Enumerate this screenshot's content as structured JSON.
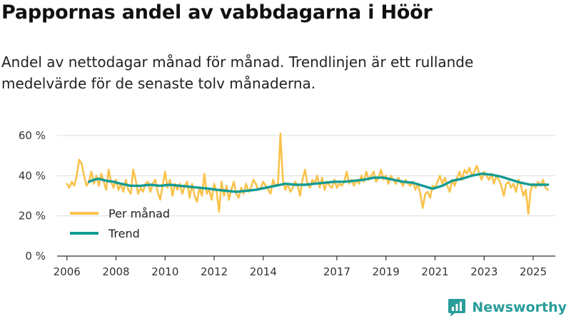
{
  "title": "Pappornas andel av vabbdagarna i Höör",
  "subtitle": "Andel av nettodagar månad för månad. Trendlinjen är ett rullande medelvärde för de senaste tolv månaderna.",
  "brand": {
    "name": "Newsworthy",
    "icon": "newsworthy-logo-icon"
  },
  "colors": {
    "monthly": "#f9c24b",
    "trend": "#139b93",
    "grid": "#dddddd",
    "axis": "#333333"
  },
  "chart_data": {
    "type": "line",
    "title": "Pappornas andel av vabbdagarna i Höör",
    "xlabel": "",
    "ylabel": "",
    "xlim": [
      2005.6,
      2025.9
    ],
    "ylim": [
      0,
      60
    ],
    "y_ticks": [
      0,
      20,
      40,
      60
    ],
    "y_tick_labels": [
      "0 %",
      "20 %",
      "40 %",
      "60 %"
    ],
    "x_ticks": [
      2006,
      2008,
      2010,
      2012,
      2014,
      2017,
      2019,
      2021,
      2023,
      2025
    ],
    "x_tick_labels": [
      "2006",
      "2008",
      "2010",
      "2012",
      "2014",
      "2017",
      "2019",
      "2021",
      "2023",
      "2025"
    ],
    "grid": true,
    "legend_position": "bottom-left",
    "series": [
      {
        "name": "Per månad",
        "color": "#f9c24b",
        "points": [
          [
            2006.0,
            36
          ],
          [
            2006.1,
            34
          ],
          [
            2006.2,
            37
          ],
          [
            2006.3,
            35
          ],
          [
            2006.4,
            40
          ],
          [
            2006.5,
            48
          ],
          [
            2006.6,
            46
          ],
          [
            2006.7,
            40
          ],
          [
            2006.8,
            35
          ],
          [
            2006.9,
            37
          ],
          [
            2007.0,
            42
          ],
          [
            2007.1,
            36
          ],
          [
            2007.2,
            40
          ],
          [
            2007.3,
            35
          ],
          [
            2007.4,
            41
          ],
          [
            2007.5,
            37
          ],
          [
            2007.6,
            33
          ],
          [
            2007.7,
            43
          ],
          [
            2007.8,
            37
          ],
          [
            2007.9,
            34
          ],
          [
            2008.0,
            38
          ],
          [
            2008.1,
            33
          ],
          [
            2008.2,
            36
          ],
          [
            2008.3,
            32
          ],
          [
            2008.4,
            38
          ],
          [
            2008.5,
            33
          ],
          [
            2008.6,
            31
          ],
          [
            2008.7,
            43
          ],
          [
            2008.8,
            38
          ],
          [
            2008.9,
            31
          ],
          [
            2009.0,
            34
          ],
          [
            2009.1,
            32
          ],
          [
            2009.2,
            36
          ],
          [
            2009.3,
            37
          ],
          [
            2009.4,
            32
          ],
          [
            2009.5,
            36
          ],
          [
            2009.6,
            38
          ],
          [
            2009.7,
            32
          ],
          [
            2009.8,
            28
          ],
          [
            2009.9,
            35
          ],
          [
            2010.0,
            42
          ],
          [
            2010.1,
            34
          ],
          [
            2010.2,
            38
          ],
          [
            2010.3,
            30
          ],
          [
            2010.4,
            36
          ],
          [
            2010.5,
            33
          ],
          [
            2010.6,
            36
          ],
          [
            2010.7,
            31
          ],
          [
            2010.8,
            35
          ],
          [
            2010.9,
            37
          ],
          [
            2011.0,
            29
          ],
          [
            2011.1,
            36
          ],
          [
            2011.2,
            30
          ],
          [
            2011.3,
            27
          ],
          [
            2011.4,
            34
          ],
          [
            2011.5,
            30
          ],
          [
            2011.6,
            41
          ],
          [
            2011.7,
            31
          ],
          [
            2011.8,
            33
          ],
          [
            2011.9,
            28
          ],
          [
            2012.0,
            36
          ],
          [
            2012.1,
            32
          ],
          [
            2012.2,
            22
          ],
          [
            2012.3,
            37
          ],
          [
            2012.4,
            30
          ],
          [
            2012.5,
            35
          ],
          [
            2012.6,
            28
          ],
          [
            2012.7,
            33
          ],
          [
            2012.8,
            37
          ],
          [
            2012.9,
            31
          ],
          [
            2013.0,
            29
          ],
          [
            2013.1,
            34
          ],
          [
            2013.2,
            31
          ],
          [
            2013.3,
            36
          ],
          [
            2013.4,
            32
          ],
          [
            2013.5,
            34
          ],
          [
            2013.6,
            38
          ],
          [
            2013.7,
            36
          ],
          [
            2013.8,
            33
          ],
          [
            2013.9,
            34
          ],
          [
            2014.0,
            37
          ],
          [
            2014.1,
            35
          ],
          [
            2014.2,
            33
          ],
          [
            2014.3,
            31
          ],
          [
            2014.4,
            38
          ],
          [
            2014.5,
            35
          ],
          [
            2014.6,
            36
          ],
          [
            2014.7,
            61
          ],
          [
            2014.8,
            38
          ],
          [
            2014.9,
            33
          ],
          [
            2015.0,
            36
          ],
          [
            2015.1,
            32
          ],
          [
            2015.2,
            34
          ],
          [
            2015.3,
            37
          ],
          [
            2015.4,
            35
          ],
          [
            2015.5,
            30
          ],
          [
            2015.6,
            38
          ],
          [
            2015.7,
            43
          ],
          [
            2015.8,
            36
          ],
          [
            2015.9,
            34
          ],
          [
            2016.0,
            38
          ],
          [
            2016.1,
            36
          ],
          [
            2016.2,
            40
          ],
          [
            2016.3,
            34
          ],
          [
            2016.4,
            39
          ],
          [
            2016.5,
            33
          ],
          [
            2016.6,
            37
          ],
          [
            2016.7,
            35
          ],
          [
            2016.8,
            34
          ],
          [
            2016.9,
            38
          ],
          [
            2017.0,
            34
          ],
          [
            2017.1,
            36
          ],
          [
            2017.2,
            35
          ],
          [
            2017.3,
            37
          ],
          [
            2017.4,
            42
          ],
          [
            2017.5,
            36
          ],
          [
            2017.6,
            38
          ],
          [
            2017.7,
            35
          ],
          [
            2017.8,
            38
          ],
          [
            2017.9,
            36
          ],
          [
            2018.0,
            40
          ],
          [
            2018.1,
            37
          ],
          [
            2018.2,
            42
          ],
          [
            2018.3,
            38
          ],
          [
            2018.4,
            40
          ],
          [
            2018.5,
            42
          ],
          [
            2018.6,
            37
          ],
          [
            2018.7,
            39
          ],
          [
            2018.8,
            43
          ],
          [
            2018.9,
            38
          ],
          [
            2019.0,
            40
          ],
          [
            2019.1,
            36
          ],
          [
            2019.2,
            40
          ],
          [
            2019.3,
            38
          ],
          [
            2019.4,
            36
          ],
          [
            2019.5,
            39
          ],
          [
            2019.6,
            37
          ],
          [
            2019.7,
            35
          ],
          [
            2019.8,
            38
          ],
          [
            2019.9,
            36
          ],
          [
            2020.0,
            35
          ],
          [
            2020.1,
            37
          ],
          [
            2020.2,
            33
          ],
          [
            2020.3,
            36
          ],
          [
            2020.4,
            31
          ],
          [
            2020.5,
            24
          ],
          [
            2020.6,
            31
          ],
          [
            2020.7,
            32
          ],
          [
            2020.8,
            29
          ],
          [
            2020.9,
            35
          ],
          [
            2021.0,
            34
          ],
          [
            2021.1,
            37
          ],
          [
            2021.2,
            40
          ],
          [
            2021.3,
            36
          ],
          [
            2021.4,
            39
          ],
          [
            2021.5,
            35
          ],
          [
            2021.6,
            32
          ],
          [
            2021.7,
            38
          ],
          [
            2021.8,
            35
          ],
          [
            2021.9,
            39
          ],
          [
            2022.0,
            42
          ],
          [
            2022.1,
            38
          ],
          [
            2022.2,
            43
          ],
          [
            2022.3,
            41
          ],
          [
            2022.4,
            44
          ],
          [
            2022.5,
            40
          ],
          [
            2022.6,
            42
          ],
          [
            2022.7,
            45
          ],
          [
            2022.8,
            41
          ],
          [
            2022.9,
            38
          ],
          [
            2023.0,
            42
          ],
          [
            2023.1,
            40
          ],
          [
            2023.2,
            38
          ],
          [
            2023.3,
            41
          ],
          [
            2023.4,
            36
          ],
          [
            2023.5,
            40
          ],
          [
            2023.6,
            38
          ],
          [
            2023.7,
            35
          ],
          [
            2023.8,
            30
          ],
          [
            2023.9,
            36
          ],
          [
            2024.0,
            37
          ],
          [
            2024.1,
            34
          ],
          [
            2024.2,
            36
          ],
          [
            2024.3,
            32
          ],
          [
            2024.4,
            38
          ],
          [
            2024.5,
            35
          ],
          [
            2024.6,
            30
          ],
          [
            2024.7,
            33
          ],
          [
            2024.8,
            21
          ],
          [
            2024.9,
            33
          ],
          [
            2025.0,
            36
          ],
          [
            2025.1,
            34
          ],
          [
            2025.2,
            37
          ],
          [
            2025.3,
            35
          ],
          [
            2025.4,
            38
          ],
          [
            2025.5,
            34
          ],
          [
            2025.6,
            33
          ]
        ]
      },
      {
        "name": "Trend",
        "color": "#139b93",
        "points": [
          [
            2006.9,
            37
          ],
          [
            2007.1,
            38
          ],
          [
            2007.3,
            38.5
          ],
          [
            2007.6,
            37.5
          ],
          [
            2007.9,
            37
          ],
          [
            2008.2,
            36
          ],
          [
            2008.6,
            35
          ],
          [
            2009.0,
            35
          ],
          [
            2009.4,
            35.5
          ],
          [
            2009.8,
            35
          ],
          [
            2010.2,
            35.5
          ],
          [
            2010.6,
            35
          ],
          [
            2011.0,
            34.5
          ],
          [
            2011.4,
            34
          ],
          [
            2011.8,
            33.5
          ],
          [
            2012.1,
            33
          ],
          [
            2012.5,
            32.5
          ],
          [
            2012.9,
            32
          ],
          [
            2013.3,
            32.5
          ],
          [
            2013.7,
            33
          ],
          [
            2014.1,
            34
          ],
          [
            2014.5,
            35
          ],
          [
            2014.9,
            36
          ],
          [
            2015.3,
            35.5
          ],
          [
            2015.7,
            35.5
          ],
          [
            2016.1,
            36
          ],
          [
            2016.5,
            36.5
          ],
          [
            2016.9,
            37
          ],
          [
            2017.3,
            37
          ],
          [
            2017.7,
            37.5
          ],
          [
            2018.1,
            38
          ],
          [
            2018.5,
            39
          ],
          [
            2018.9,
            39
          ],
          [
            2019.3,
            38
          ],
          [
            2019.7,
            37
          ],
          [
            2020.1,
            36.5
          ],
          [
            2020.5,
            35
          ],
          [
            2020.9,
            33.5
          ],
          [
            2021.3,
            35
          ],
          [
            2021.7,
            37.5
          ],
          [
            2022.1,
            38.5
          ],
          [
            2022.5,
            40
          ],
          [
            2022.9,
            41
          ],
          [
            2023.3,
            40.5
          ],
          [
            2023.7,
            39.5
          ],
          [
            2024.1,
            38
          ],
          [
            2024.5,
            36.5
          ],
          [
            2024.9,
            35.5
          ],
          [
            2025.3,
            35.5
          ],
          [
            2025.6,
            35.5
          ]
        ]
      }
    ]
  }
}
